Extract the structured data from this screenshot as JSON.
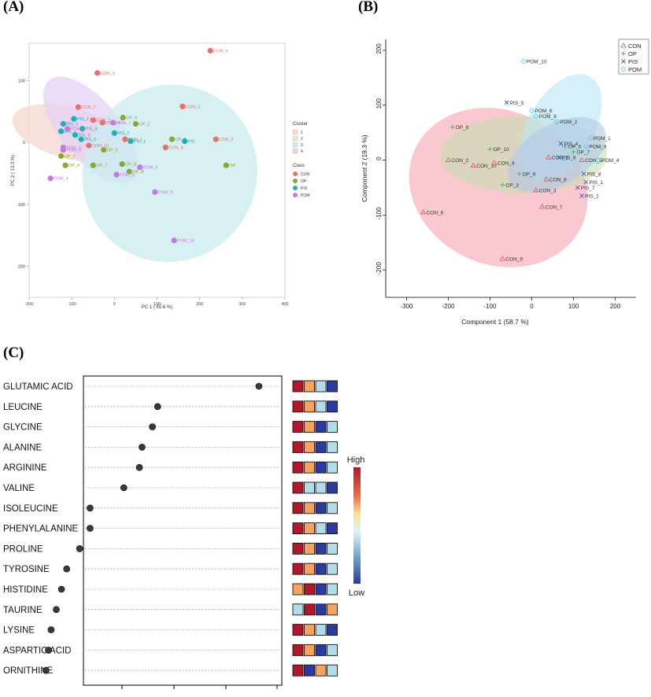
{
  "panels": {
    "a": "(A)",
    "b": "(B)",
    "c": "(C)"
  },
  "colors": {
    "CON": "#e8706b",
    "OP": "#88a832",
    "PIS": "#1fb0b6",
    "POM": "#c07ae6",
    "cluster1": "#f6d5cf",
    "cluster2": "#ebe7c8",
    "cluster3": "#c9ecef",
    "cluster4": "#e4d2f4",
    "b_CON": "#e84a5f",
    "b_OP": "#4caf50",
    "b_PIS": "#3f51b5",
    "b_POM": "#56c8e8",
    "b_ell_CON": "#f7a3b0",
    "b_ell_OP": "#c6ddb0",
    "b_ell_PIS": "#b3c6ea",
    "b_ell_POM": "#b8e6f5"
  },
  "chart_data": [
    {
      "type": "scatter",
      "xlabel": "PC 1 ( 65.6 %)",
      "ylabel": "PC 2 ( 13.3 %)",
      "xlim": [
        -200,
        400
      ],
      "ylim": [
        -250,
        160
      ],
      "xticks": [
        -200,
        -100,
        0,
        100,
        200,
        300,
        400
      ],
      "yticks": [
        -200,
        -100,
        0,
        100
      ],
      "legend_cluster_title": "Cluster",
      "legend_clusters": [
        "1",
        "2",
        "3",
        "4"
      ],
      "legend_class_title": "Class",
      "legend_classes": [
        "CON",
        "OP",
        "PIS",
        "POM"
      ],
      "ellipses": [
        {
          "cluster": "1",
          "cx": -105,
          "cy": 15,
          "rx": 60,
          "ry": 95,
          "angle": -75
        },
        {
          "cluster": "4",
          "cx": -55,
          "cy": 20,
          "rx": 70,
          "ry": 105,
          "angle": -40
        },
        {
          "cluster": "3",
          "cx": 130,
          "cy": -50,
          "rx": 210,
          "ry": 140,
          "angle": -58
        }
      ],
      "points": [
        {
          "label": "CON_6",
          "class": "CON",
          "x": 225,
          "y": 148
        },
        {
          "label": "CON_9",
          "class": "CON",
          "x": -40,
          "y": 112
        },
        {
          "label": "CON_7",
          "class": "CON",
          "x": -85,
          "y": 57
        },
        {
          "label": "CON_3",
          "class": "CON",
          "x": 160,
          "y": 58
        },
        {
          "label": "CON_2",
          "class": "CON",
          "x": -50,
          "y": 36
        },
        {
          "label": "CON_4",
          "class": "CON",
          "x": -28,
          "y": 32
        },
        {
          "label": "CON_1",
          "class": "CON",
          "x": 25,
          "y": 5
        },
        {
          "label": "CON_8",
          "class": "CON",
          "x": 120,
          "y": -8
        },
        {
          "label": "CON_5",
          "class": "CON",
          "x": 238,
          "y": 5
        },
        {
          "label": "CON_10",
          "class": "CON",
          "x": -60,
          "y": -5
        },
        {
          "label": "OP_9",
          "class": "OP",
          "x": 20,
          "y": 40
        },
        {
          "label": "OP_3",
          "class": "OP",
          "x": 50,
          "y": 30
        },
        {
          "label": "OP_1",
          "class": "OP",
          "x": 135,
          "y": 5
        },
        {
          "label": "OP_5",
          "class": "OP",
          "x": -25,
          "y": -12
        },
        {
          "label": "OP_2",
          "class": "OP",
          "x": -125,
          "y": -22
        },
        {
          "label": "OP_4",
          "class": "OP",
          "x": -115,
          "y": -37
        },
        {
          "label": "OP_7",
          "class": "OP",
          "x": -50,
          "y": -37
        },
        {
          "label": "OP_6",
          "class": "OP",
          "x": 18,
          "y": -35
        },
        {
          "label": "OP",
          "class": "OP",
          "x": 262,
          "y": -37
        },
        {
          "label": "OP_8",
          "class": "OP",
          "x": 35,
          "y": -47
        },
        {
          "label": "PIS_2",
          "class": "PIS",
          "x": -95,
          "y": 38
        },
        {
          "label": "PIS_5",
          "class": "PIS",
          "x": -120,
          "y": 30
        },
        {
          "label": "PIS_8",
          "class": "PIS",
          "x": -75,
          "y": 22
        },
        {
          "label": "PIS_1",
          "class": "PIS",
          "x": -125,
          "y": 18
        },
        {
          "label": "PIS_3",
          "class": "PIS",
          "x": -92,
          "y": 12
        },
        {
          "label": "PIS_7",
          "class": "PIS",
          "x": 0,
          "y": 15
        },
        {
          "label": "PIS_4",
          "class": "PIS",
          "x": 38,
          "y": 2
        },
        {
          "label": "PIS_6",
          "class": "PIS",
          "x": -78,
          "y": 5
        },
        {
          "label": "PIS",
          "class": "PIS",
          "x": 165,
          "y": 2
        },
        {
          "label": "POM_7",
          "class": "POM",
          "x": -3,
          "y": 32
        },
        {
          "label": "POM_2",
          "class": "POM",
          "x": -110,
          "y": 22
        },
        {
          "label": "POM_5",
          "class": "POM",
          "x": -120,
          "y": -8
        },
        {
          "label": "POM_3",
          "class": "POM",
          "x": -120,
          "y": -12
        },
        {
          "label": "POM_6",
          "class": "POM",
          "x": 5,
          "y": -52
        },
        {
          "label": "POM_8",
          "class": "POM",
          "x": 60,
          "y": -40
        },
        {
          "label": "POM_4",
          "class": "POM",
          "x": -150,
          "y": -58
        },
        {
          "label": "POM_9",
          "class": "POM",
          "x": 95,
          "y": -80
        },
        {
          "label": "POM_10",
          "class": "POM",
          "x": 140,
          "y": -158
        }
      ]
    },
    {
      "type": "scatter",
      "xlabel": "Component 1 (58.7 %)",
      "ylabel": "Component 2 (19.3 %)",
      "xlim": [
        -350,
        250
      ],
      "ylim": [
        -250,
        220
      ],
      "xticks": [
        -300,
        -200,
        -100,
        0,
        100,
        200
      ],
      "yticks": [
        -200,
        -100,
        0,
        100,
        200
      ],
      "legend": [
        "CON",
        "OP",
        "PIS",
        "POM"
      ],
      "markers": {
        "CON": "triangle",
        "OP": "plus",
        "PIS": "cross",
        "POM": "diamond"
      },
      "ellipses": [
        {
          "group": "CON",
          "cx": -80,
          "cy": -50,
          "rx": 220,
          "ry": 140,
          "angle": 25
        },
        {
          "group": "OP",
          "cx": -20,
          "cy": 10,
          "rx": 200,
          "ry": 70,
          "angle": 0
        },
        {
          "group": "PIS",
          "cx": 60,
          "cy": 10,
          "rx": 130,
          "ry": 55,
          "angle": -30
        },
        {
          "group": "POM",
          "cx": 70,
          "cy": 60,
          "rx": 140,
          "ry": 60,
          "angle": -60
        }
      ],
      "points": [
        {
          "label": "CON_2",
          "group": "CON",
          "x": -200,
          "y": 0
        },
        {
          "label": "CON_10",
          "group": "CON",
          "x": -140,
          "y": -10
        },
        {
          "label": "CON_4",
          "group": "CON",
          "x": -90,
          "y": -5
        },
        {
          "label": "CON_1",
          "group": "CON",
          "x": 40,
          "y": 5
        },
        {
          "label": "CON_3",
          "group": "CON",
          "x": 10,
          "y": -55
        },
        {
          "label": "CON_8",
          "group": "CON",
          "x": 35,
          "y": -35
        },
        {
          "label": "CON_7",
          "group": "CON",
          "x": 25,
          "y": -85
        },
        {
          "label": "CON_6",
          "group": "CON",
          "x": -260,
          "y": -95
        },
        {
          "label": "CON_9",
          "group": "CON",
          "x": -70,
          "y": -180
        },
        {
          "label": "CON_5",
          "group": "CON",
          "x": 120,
          "y": 0
        },
        {
          "label": "OP_8",
          "group": "OP",
          "x": -190,
          "y": 60
        },
        {
          "label": "OP_10",
          "group": "OP",
          "x": -100,
          "y": 20
        },
        {
          "label": "OP_9",
          "group": "OP",
          "x": -30,
          "y": -25
        },
        {
          "label": "OP_3",
          "group": "OP",
          "x": -70,
          "y": -45
        },
        {
          "label": "OP_6",
          "group": "OP",
          "x": 80,
          "y": 25
        },
        {
          "label": "OP_7",
          "group": "OP",
          "x": 100,
          "y": 15
        },
        {
          "label": "PIS_5",
          "group": "PIS",
          "x": -60,
          "y": 105
        },
        {
          "label": "PIS_4",
          "group": "PIS",
          "x": 70,
          "y": 30
        },
        {
          "label": "PIS_6",
          "group": "PIS",
          "x": 65,
          "y": 5
        },
        {
          "label": "PIS_8",
          "group": "PIS",
          "x": 125,
          "y": -25
        },
        {
          "label": "PIS_1",
          "group": "PIS",
          "x": 130,
          "y": -40
        },
        {
          "label": "PIS_7",
          "group": "PIS",
          "x": 110,
          "y": -50
        },
        {
          "label": "PIS_2",
          "group": "PIS",
          "x": 120,
          "y": -65
        },
        {
          "label": "POM_10",
          "group": "POM",
          "x": -20,
          "y": 180
        },
        {
          "label": "POM_6",
          "group": "POM",
          "x": 0,
          "y": 90
        },
        {
          "label": "POM_8",
          "group": "POM",
          "x": 10,
          "y": 80
        },
        {
          "label": "POM_2",
          "group": "POM",
          "x": 60,
          "y": 70
        },
        {
          "label": "POM_1",
          "group": "POM",
          "x": 140,
          "y": 40
        },
        {
          "label": "POM_9",
          "group": "POM",
          "x": 130,
          "y": 25
        },
        {
          "label": "POM_4",
          "group": "POM",
          "x": 160,
          "y": 0
        }
      ]
    },
    {
      "type": "dot",
      "categories": [
        "GLUTAMIC ACID",
        "LEUCINE",
        "GLYCINE",
        "ALANINE",
        "ARGININE",
        "VALINE",
        "ISOLEUCINE",
        "PHENYLALANINE",
        "PROLINE",
        "TYROSINE",
        "HISTIDINE",
        "TAURINE",
        "LYSINE",
        "ASPARTIC ACID",
        "ORNITHINE"
      ],
      "values": [
        0.93,
        0.54,
        0.52,
        0.48,
        0.47,
        0.41,
        0.28,
        0.28,
        0.24,
        0.19,
        0.17,
        0.15,
        0.13,
        0.12,
        0.11
      ],
      "xlim": [
        0,
        1
      ],
      "heatmap_levels": [
        [
          4,
          3,
          2,
          1
        ],
        [
          4,
          3,
          2,
          1
        ],
        [
          4,
          3,
          1,
          2
        ],
        [
          4,
          3,
          1,
          2
        ],
        [
          4,
          3,
          1,
          2
        ],
        [
          4,
          2,
          2,
          1
        ],
        [
          4,
          3,
          1,
          2
        ],
        [
          4,
          3,
          2,
          1
        ],
        [
          4,
          3,
          1,
          2
        ],
        [
          4,
          3,
          1,
          2
        ],
        [
          3,
          4,
          1,
          2
        ],
        [
          2,
          4,
          1,
          3
        ],
        [
          4,
          3,
          2,
          1
        ],
        [
          4,
          3,
          1,
          2
        ],
        [
          4,
          1,
          3,
          2
        ]
      ],
      "level_colors": {
        "4": "#b2182b",
        "3": "#f4a460",
        "2": "#b3dbe8",
        "1": "#2b3a9c"
      },
      "colorbar_high": "High",
      "colorbar_low": "Low"
    }
  ]
}
